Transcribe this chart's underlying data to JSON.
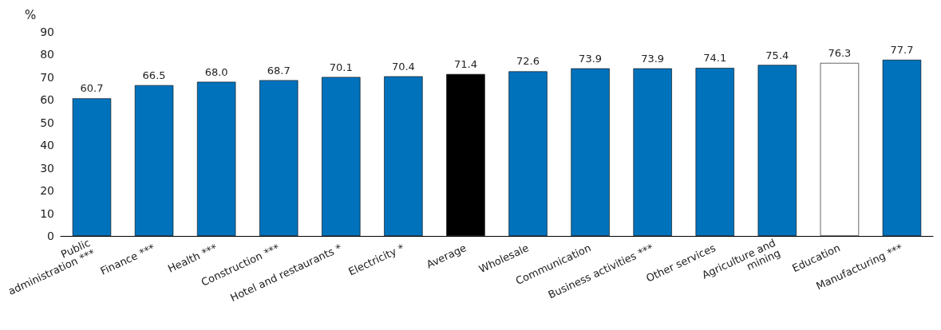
{
  "chart_data": {
    "type": "bar",
    "ylabel": "%",
    "categories": [
      "Public\nadministration ***",
      "Finance ***",
      "Health ***",
      "Construction ***",
      "Hotel and restaurants *",
      "Electricity *",
      "Average",
      "Wholesale",
      "Communication",
      "Business activities ***",
      "Other services",
      "Agriculture and\nmining",
      "Education",
      "Manufacturing ***"
    ],
    "values": [
      60.7,
      66.5,
      68.0,
      68.7,
      70.1,
      70.4,
      71.4,
      72.6,
      73.9,
      73.9,
      74.1,
      75.4,
      76.3,
      77.7
    ],
    "value_labels": [
      "60.7",
      "66.5",
      "68.0",
      "68.7",
      "70.1",
      "70.4",
      "71.4",
      "72.6",
      "73.9",
      "73.9",
      "74.1",
      "75.4",
      "76.3",
      "77.7"
    ],
    "colors": [
      "#0072bc",
      "#0072bc",
      "#0072bc",
      "#0072bc",
      "#0072bc",
      "#0072bc",
      "#000000",
      "#0072bc",
      "#0072bc",
      "#0072bc",
      "#0072bc",
      "#0072bc",
      "#ffffff",
      "#0072bc"
    ],
    "ylim": [
      0,
      90
    ],
    "yticks": [
      0,
      10,
      20,
      30,
      40,
      50,
      60,
      70,
      80,
      90
    ],
    "grid": false
  }
}
